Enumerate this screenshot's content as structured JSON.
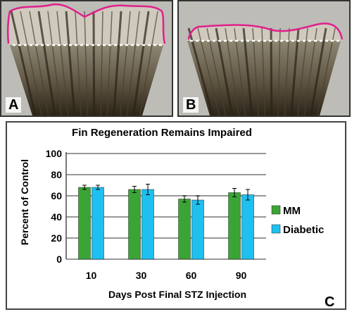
{
  "panels": {
    "a": {
      "letter": "A"
    },
    "b": {
      "letter": "B"
    },
    "c": {
      "letter": "C"
    }
  },
  "colors": {
    "mm": "#3aa535",
    "diabetic": "#1ec0f0",
    "outline": "#e0208c",
    "amputation_line": "#ffffff"
  },
  "chart_data": {
    "type": "bar",
    "title": "Fin Regeneration Remains Impaired",
    "xlabel": "Days Post Final STZ Injection",
    "ylabel": "Percent of Control",
    "categories": [
      "10",
      "30",
      "60",
      "90"
    ],
    "yticks": [
      "0",
      "20",
      "40",
      "60",
      "80",
      "100"
    ],
    "ylim": [
      0,
      100
    ],
    "grid": true,
    "legend_position": "right",
    "series": [
      {
        "name": "MM",
        "values": [
          68,
          66,
          57,
          63
        ],
        "errors": [
          2,
          3,
          3,
          4
        ]
      },
      {
        "name": "Diabetic",
        "values": [
          68,
          66,
          56,
          61
        ],
        "errors": [
          2,
          5,
          4,
          5
        ]
      }
    ]
  }
}
